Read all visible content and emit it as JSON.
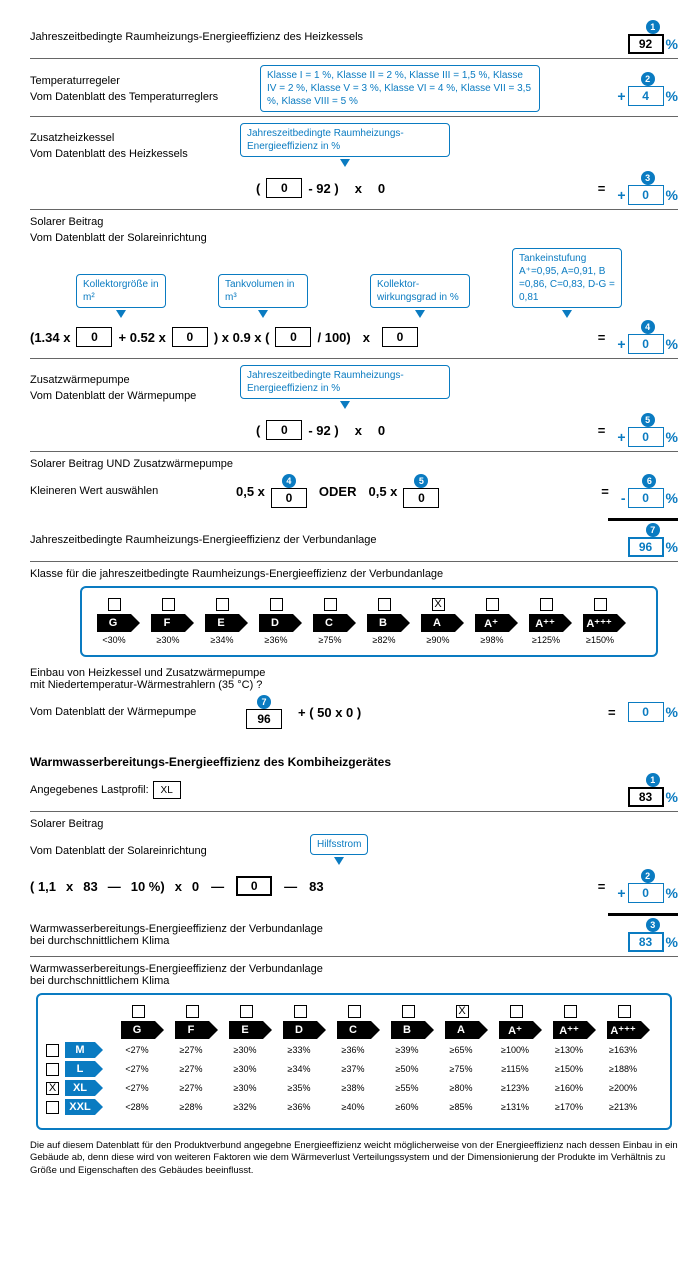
{
  "s1": {
    "title": "Jahreszeitbedingte Raumheizungs-Energieeffizienz des Heizkessels",
    "num": "1",
    "val": "92"
  },
  "s2": {
    "title": "Temperaturregeler",
    "sub": "Vom Datenblatt des Temperaturreglers",
    "info": "Klasse I = 1 %, Klasse II = 2 %, Klasse III = 1,5 %, Klasse IV = 2 %, Klasse V = 3 %, Klasse VI = 4 %, Klasse VII = 3,5 %, Klasse VIII = 5 %",
    "num": "2",
    "val": "4"
  },
  "s3": {
    "title": "Zusatzheizkessel",
    "sub": "Vom Datenblatt des Heizkessels",
    "info": "Jahreszeitbedingte Raumheizungs-Energieeffizienz in %",
    "in": "0",
    "c1": "- 92 )",
    "c2": "x",
    "c3": "0",
    "num": "3",
    "val": "0"
  },
  "s4": {
    "title": "Solarer Beitrag",
    "sub": "Vom Datenblatt der Solareinrichtung",
    "l1": "Kollektorgröße in m²",
    "l2": "Tankvolumen in m³",
    "l3": "Kollektor-wirkungsgrad in %",
    "l4": "Tankeinstufung A⁺=0,95, A=0,91, B =0,86, C=0,83, D-G = 0,81",
    "f1": "(1.34 x",
    "v1": "0",
    "f2": "+ 0.52 x",
    "v2": "0",
    "f3": ") x 0.9 x (",
    "v3": "0",
    "f4": "/ 100)",
    "f5": "x",
    "v4": "0",
    "num": "4",
    "val": "0"
  },
  "s5": {
    "title": "Zusatzwärmepumpe",
    "sub": "Vom Datenblatt der Wärmepumpe",
    "info": "Jahreszeitbedingte Raumheizungs-Energieeffizienz in %",
    "in": "0",
    "c1": "- 92 )",
    "c2": "x",
    "c3": "0",
    "num": "5",
    "val": "0"
  },
  "s6": {
    "title": "Solarer Beitrag UND Zusatzwärmepumpe",
    "sub": "Kleineren Wert auswählen",
    "f1": "0,5 x",
    "n1": "4",
    "v1": "0",
    "f2": "ODER",
    "f3": "0,5 x",
    "n2": "5",
    "v2": "0",
    "num": "6",
    "val": "0"
  },
  "s7": {
    "title": "Jahreszeitbedingte Raumheizungs-Energieeffizienz der Verbundanlage",
    "num": "7",
    "val": "96"
  },
  "classHeading": "Klasse für die jahreszeitbedingte Raumheizungs-Energieeffizienz der Verbundanlage",
  "classes": [
    {
      "chk": "",
      "lbl": "G",
      "pct": "<30%"
    },
    {
      "chk": "",
      "lbl": "F",
      "pct": "≥30%"
    },
    {
      "chk": "",
      "lbl": "E",
      "pct": "≥34%"
    },
    {
      "chk": "",
      "lbl": "D",
      "pct": "≥36%"
    },
    {
      "chk": "",
      "lbl": "C",
      "pct": "≥75%"
    },
    {
      "chk": "",
      "lbl": "B",
      "pct": "≥82%"
    },
    {
      "chk": "X",
      "lbl": "A",
      "pct": "≥90%"
    },
    {
      "chk": "",
      "lbl": "A⁺",
      "pct": "≥98%"
    },
    {
      "chk": "",
      "lbl": "A⁺⁺",
      "pct": "≥125%"
    },
    {
      "chk": "",
      "lbl": "A⁺⁺⁺",
      "pct": "≥150%"
    }
  ],
  "s8": {
    "t1": "Einbau von Heizkessel und Zusatzwärmepumpe",
    "t2": "mit Niedertemperatur-Wärmestrahlern (35 °C) ?",
    "sub": "Vom Datenblatt der Wärmepumpe",
    "num": "7",
    "v1": "96",
    "f1": "+ ( 50 x 0 )",
    "val": "0"
  },
  "ww": {
    "heading": "Warmwasserbereitungs-Energieeffizienz des Kombiheizgerätes",
    "profileLabel": "Angegebenes Lastprofil:",
    "profile": "XL",
    "num": "1",
    "val": "83"
  },
  "ww2": {
    "title": "Solarer Beitrag",
    "sub": "Vom Datenblatt der Solareinrichtung",
    "hint": "Hilfsstrom",
    "f1": "( 1,1",
    "f2": "x",
    "f3": "83",
    "f4": "—",
    "f5": "10 %)",
    "f6": "x",
    "f7": "0",
    "f8": "—",
    "v1": "0",
    "f9": "—",
    "f10": "83",
    "num": "2",
    "val": "0"
  },
  "ww3": {
    "t1": "Warmwasserbereitungs-Energieeffizienz der Verbundanlage",
    "t2": "bei durchschnittlichem Klima",
    "num": "3",
    "val": "83"
  },
  "ww4": {
    "t1": "Warmwasserbereitungs-Energieeffizienz der Verbundanlage",
    "t2": "bei durchschnittlichem Klima"
  },
  "sizes": [
    {
      "chk": "",
      "lbl": "M",
      "r": [
        "<27%",
        "≥27%",
        "≥30%",
        "≥33%",
        "≥36%",
        "≥39%",
        "≥65%",
        "≥100%",
        "≥130%",
        "≥163%"
      ]
    },
    {
      "chk": "",
      "lbl": "L",
      "r": [
        "<27%",
        "≥27%",
        "≥30%",
        "≥34%",
        "≥37%",
        "≥50%",
        "≥75%",
        "≥115%",
        "≥150%",
        "≥188%"
      ]
    },
    {
      "chk": "X",
      "lbl": "XL",
      "r": [
        "<27%",
        "≥27%",
        "≥30%",
        "≥35%",
        "≥38%",
        "≥55%",
        "≥80%",
        "≥123%",
        "≥160%",
        "≥200%"
      ]
    },
    {
      "chk": "",
      "lbl": "XXL",
      "r": [
        "<28%",
        "≥28%",
        "≥32%",
        "≥36%",
        "≥40%",
        "≥60%",
        "≥85%",
        "≥131%",
        "≥170%",
        "≥213%"
      ]
    }
  ],
  "sizeClasses": [
    {
      "chk": "",
      "lbl": "G"
    },
    {
      "chk": "",
      "lbl": "F"
    },
    {
      "chk": "",
      "lbl": "E"
    },
    {
      "chk": "",
      "lbl": "D"
    },
    {
      "chk": "",
      "lbl": "C"
    },
    {
      "chk": "",
      "lbl": "B"
    },
    {
      "chk": "X",
      "lbl": "A"
    },
    {
      "chk": "",
      "lbl": "A⁺"
    },
    {
      "chk": "",
      "lbl": "A⁺⁺"
    },
    {
      "chk": "",
      "lbl": "A⁺⁺⁺"
    }
  ],
  "footnote": "Die auf diesem Datenblatt für den Produktverbund angegebne Energieeffizienz weicht möglicherweise von der Energieeffizienz nach dessen Einbau in ein Gebäude ab, denn diese wird von weiteren Faktoren wie dem Wärmeverlust Verteilungssystem und der Dimensionierung der Produkte im Verhältnis zu Größe und Eigenschaften des Gebäudes beeinflusst."
}
